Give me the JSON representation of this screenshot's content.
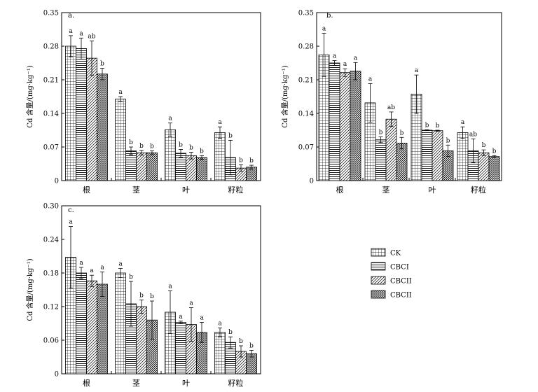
{
  "figure": {
    "legend": {
      "items": [
        {
          "name": "CK",
          "pattern": "grid"
        },
        {
          "name": "CBCI",
          "pattern": "hlines"
        },
        {
          "name": "CBCII",
          "pattern": "diag"
        },
        {
          "name": "CBCII",
          "pattern": "cross"
        }
      ]
    }
  },
  "chart_data": [
    {
      "type": "bar",
      "panel": "a.",
      "ylabel": "Cd 含量/(mg·kg⁻¹)",
      "ylim": [
        0,
        0.35
      ],
      "yticks": [
        "0",
        "0.07",
        "0.14",
        "0.21",
        "0.28",
        "0.35"
      ],
      "categories": [
        "根",
        "茎",
        "叶",
        "籽粒"
      ],
      "series": [
        {
          "name": "CK",
          "values": [
            0.28,
            0.17,
            0.106,
            0.1
          ],
          "errors": [
            0.022,
            0.005,
            0.014,
            0.012
          ],
          "letters": [
            "a",
            "a",
            "a",
            "a"
          ]
        },
        {
          "name": "CBCI",
          "values": [
            0.275,
            0.062,
            0.057,
            0.048
          ],
          "errors": [
            0.022,
            0.008,
            0.008,
            0.036
          ],
          "letters": [
            "a",
            "b",
            "b",
            "b"
          ]
        },
        {
          "name": "CBCII",
          "values": [
            0.255,
            0.058,
            0.052,
            0.026
          ],
          "errors": [
            0.036,
            0.005,
            0.007,
            0.007
          ],
          "letters": [
            "ab",
            "b",
            "b",
            "b"
          ]
        },
        {
          "name": "CBCII",
          "values": [
            0.222,
            0.058,
            0.048,
            0.028
          ],
          "errors": [
            0.012,
            0.004,
            0.004,
            0.004
          ],
          "letters": [
            "b",
            "b",
            "b",
            "b"
          ]
        }
      ]
    },
    {
      "type": "bar",
      "panel": "b.",
      "ylabel": "Cd 含量/(mg·kg⁻¹)",
      "ylim": [
        0,
        0.35
      ],
      "yticks": [
        "0",
        "0.07",
        "0.14",
        "0.21",
        "0.28",
        "0.35"
      ],
      "categories": [
        "根",
        "茎",
        "叶",
        "籽粒"
      ],
      "series": [
        {
          "name": "CK",
          "values": [
            0.262,
            0.162,
            0.18,
            0.1
          ],
          "errors": [
            0.045,
            0.04,
            0.04,
            0.012
          ],
          "letters": [
            "a",
            "a",
            "a",
            "a"
          ]
        },
        {
          "name": "CBCI",
          "values": [
            0.245,
            0.085,
            0.105,
            0.062
          ],
          "errors": [
            0.005,
            0.006,
            0.001,
            0.025
          ],
          "letters": [
            "a",
            "b",
            "b",
            "ab"
          ]
        },
        {
          "name": "CBCII",
          "values": [
            0.225,
            0.128,
            0.104,
            0.058
          ],
          "errors": [
            0.008,
            0.015,
            0.001,
            0.006
          ],
          "letters": [
            "a",
            "ab",
            "b",
            "b"
          ]
        },
        {
          "name": "CBCII",
          "values": [
            0.228,
            0.078,
            0.062,
            0.05
          ],
          "errors": [
            0.018,
            0.012,
            0.012,
            0.002
          ],
          "letters": [
            "a",
            "b",
            "b",
            "b"
          ]
        }
      ]
    },
    {
      "type": "bar",
      "panel": "c.",
      "ylabel": "Cd 含量/(mg·kg⁻¹)",
      "ylim": [
        0,
        0.3
      ],
      "yticks": [
        "0",
        "0.06",
        "0.12",
        "0.18",
        "0.24",
        "0.30"
      ],
      "categories": [
        "根",
        "茎",
        "叶",
        "籽粒"
      ],
      "series": [
        {
          "name": "CK",
          "values": [
            0.208,
            0.18,
            0.11,
            0.074
          ],
          "errors": [
            0.055,
            0.008,
            0.038,
            0.008
          ],
          "letters": [
            "a",
            "a",
            "a",
            "a"
          ]
        },
        {
          "name": "CBCI",
          "values": [
            0.18,
            0.125,
            0.092,
            0.056
          ],
          "errors": [
            0.01,
            0.04,
            0.002,
            0.01
          ],
          "letters": [
            "a",
            "b",
            "a",
            "b"
          ]
        },
        {
          "name": "CBCII",
          "values": [
            0.166,
            0.12,
            0.088,
            0.04
          ],
          "errors": [
            0.01,
            0.012,
            0.03,
            0.01
          ],
          "letters": [
            "a",
            "b",
            "a",
            "b"
          ]
        },
        {
          "name": "CBCII",
          "values": [
            0.16,
            0.096,
            0.074,
            0.036
          ],
          "errors": [
            0.022,
            0.034,
            0.018,
            0.006
          ],
          "letters": [
            "a",
            "b",
            "a",
            "b"
          ]
        }
      ]
    }
  ]
}
